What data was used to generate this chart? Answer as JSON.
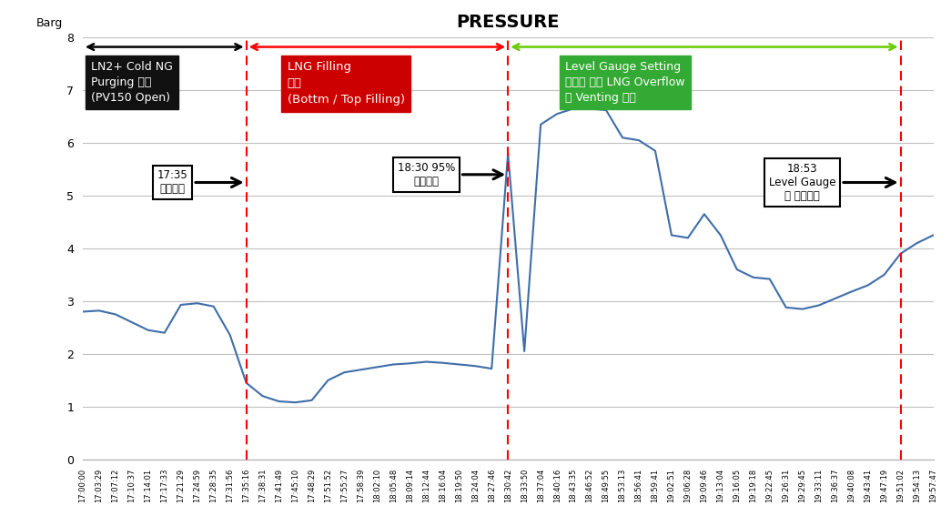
{
  "title": "PRESSURE",
  "ylabel": "Barg",
  "ylim": [
    0,
    8
  ],
  "yticks": [
    0,
    1,
    2,
    3,
    4,
    5,
    6,
    7,
    8
  ],
  "background_color": "#ffffff",
  "line_color": "#3F6EA8",
  "grid_color": "#c0c0c0",
  "xtick_labels": [
    "17:00:00",
    "17:03:29",
    "17:07:12",
    "17:10:37",
    "17:14:01",
    "17:17:33",
    "17:21:29",
    "17:24:59",
    "17:28:35",
    "17:31:56",
    "17:35:16",
    "17:38:31",
    "17:41:49",
    "17:45:10",
    "17:48:29",
    "17:51:52",
    "17:55:27",
    "17:58:39",
    "18:02:10",
    "18:05:48",
    "18:09:14",
    "18:12:44",
    "18:16:04",
    "18:19:50",
    "18:24:04",
    "18:27:46",
    "18:30:42",
    "18:33:50",
    "18:37:04",
    "18:40:16",
    "18:43:35",
    "18:46:52",
    "18:49:55",
    "18:53:13",
    "18:56:41",
    "18:59:41",
    "19:02:51",
    "19:06:28",
    "19:09:46",
    "19:13:04",
    "19:16:05",
    "19:19:18",
    "19:22:45",
    "19:26:31",
    "19:29:45",
    "19:33:11",
    "19:36:37",
    "19:40:08",
    "19:43:41",
    "19:47:19",
    "19:51:02",
    "19:54:13",
    "19:57:47"
  ],
  "pressure_data": [
    2.8,
    2.82,
    2.75,
    2.6,
    2.45,
    2.4,
    2.93,
    2.96,
    2.9,
    2.36,
    1.45,
    1.2,
    1.1,
    1.08,
    1.12,
    1.5,
    1.65,
    1.7,
    1.75,
    1.8,
    1.82,
    1.85,
    1.83,
    1.8,
    1.77,
    1.72,
    5.8,
    2.05,
    6.35,
    6.55,
    6.65,
    6.65,
    6.62,
    6.1,
    6.05,
    5.85,
    4.25,
    4.2,
    4.65,
    4.25,
    3.6,
    3.45,
    3.42,
    2.88,
    2.85,
    2.92,
    3.05,
    3.18,
    3.3,
    3.5,
    3.9,
    4.1,
    4.25
  ],
  "vline1_idx": 10,
  "vline2_idx": 26,
  "vline3_idx": 50,
  "box1_label": "LN2+ Cold NG\nPurging 구간\n(PV150 Open)",
  "box1_color": "#111111",
  "box1_text_color": "#ffffff",
  "box2_label": "LNG Filling\n구간\n(Bottm / Top Filling)",
  "box2_color": "#cc0000",
  "box2_text_color": "#ffffff",
  "box3_label": "Level Gauge Setting\n오류로 인한 LNG Overflow\n및 Venting 구간",
  "box3_color": "#33aa33",
  "box3_text_color": "#ffffff",
  "ann1_text": "17:35\n출전시작",
  "ann2_text": "18:30 95%\n출전완료",
  "ann3_text": "18:53\nLevel Gauge\n재 조정시점"
}
